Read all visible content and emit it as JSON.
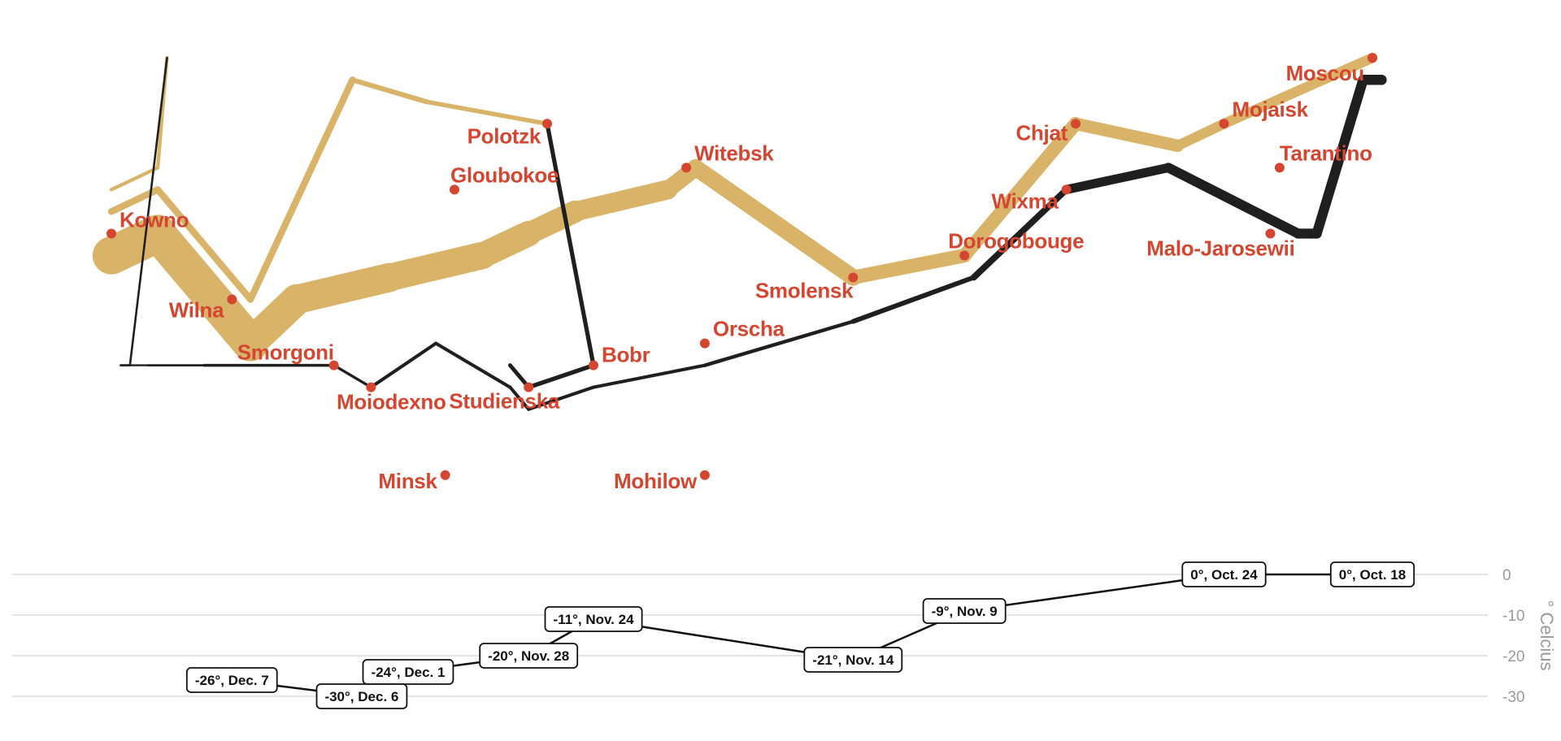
{
  "chart_data": {
    "type": "flow-map",
    "colors": {
      "advance": "#d9b468",
      "retreat": "#1f1f1f",
      "city": "#d44630",
      "grid": "#e3e3e3",
      "tick": "#999999"
    },
    "map": {
      "lon_range": [
        23.5,
        38.1
      ],
      "lat_range": [
        53.74,
        55.96
      ]
    },
    "advance": [
      {
        "lon": 24.0,
        "lat": 54.9,
        "survivors": 422000
      },
      {
        "lon": 24.5,
        "lat": 55.0,
        "survivors": 400000
      },
      {
        "lon": 25.5,
        "lat": 54.5,
        "survivors": 340000
      },
      {
        "lon": 26.0,
        "lat": 54.7,
        "survivors": 320000
      },
      {
        "lon": 27.0,
        "lat": 54.8,
        "survivors": 300000
      },
      {
        "lon": 28.0,
        "lat": 54.9,
        "survivors": 280000
      },
      {
        "lon": 28.5,
        "lat": 55.0,
        "survivors": 240000
      },
      {
        "lon": 29.0,
        "lat": 55.1,
        "survivors": 210000
      },
      {
        "lon": 30.0,
        "lat": 55.2,
        "survivors": 180000
      },
      {
        "lon": 30.3,
        "lat": 55.3,
        "survivors": 175000
      },
      {
        "lon": 32.0,
        "lat": 54.8,
        "survivors": 145000
      },
      {
        "lon": 33.2,
        "lat": 54.9,
        "survivors": 140000
      },
      {
        "lon": 34.4,
        "lat": 55.5,
        "survivors": 127100
      },
      {
        "lon": 35.5,
        "lat": 55.4,
        "survivors": 100000
      },
      {
        "lon": 36.0,
        "lat": 55.5,
        "survivors": 100000
      },
      {
        "lon": 37.6,
        "lat": 55.8,
        "survivors": 100000
      }
    ],
    "advance_branch": [
      {
        "lon": 24.0,
        "lat": 55.1,
        "survivors": 60000
      },
      {
        "lon": 24.5,
        "lat": 55.2,
        "survivors": 60000
      },
      {
        "lon": 25.5,
        "lat": 54.7,
        "survivors": 60000
      },
      {
        "lon": 26.6,
        "lat": 55.7,
        "survivors": 40000
      },
      {
        "lon": 27.4,
        "lat": 55.6,
        "survivors": 33000
      },
      {
        "lon": 28.7,
        "lat": 55.5,
        "survivors": 33000
      }
    ],
    "advance_branch_2": [
      {
        "lon": 24.0,
        "lat": 55.2,
        "survivors": 22000
      },
      {
        "lon": 24.5,
        "lat": 55.3,
        "survivors": 22000
      },
      {
        "lon": 24.6,
        "lat": 55.8,
        "survivors": 6000
      }
    ],
    "retreat": [
      {
        "lon": 37.7,
        "lat": 55.7,
        "survivors": 100000
      },
      {
        "lon": 37.5,
        "lat": 55.7,
        "survivors": 98000
      },
      {
        "lon": 37.0,
        "lat": 55.0,
        "survivors": 97000
      },
      {
        "lon": 36.8,
        "lat": 55.0,
        "survivors": 96000
      },
      {
        "lon": 35.4,
        "lat": 55.3,
        "survivors": 87000
      },
      {
        "lon": 34.3,
        "lat": 55.2,
        "survivors": 55000
      },
      {
        "lon": 33.3,
        "lat": 54.8,
        "survivors": 37000
      },
      {
        "lon": 32.0,
        "lat": 54.6,
        "survivors": 24000
      },
      {
        "lon": 30.4,
        "lat": 54.4,
        "survivors": 20000
      },
      {
        "lon": 29.2,
        "lat": 54.3,
        "survivors": 20000
      },
      {
        "lon": 28.5,
        "lat": 54.2,
        "survivors": 20000
      },
      {
        "lon": 28.3,
        "lat": 54.3,
        "survivors": 20000
      },
      {
        "lon": 27.5,
        "lat": 54.5,
        "survivors": 20000
      },
      {
        "lon": 26.8,
        "lat": 54.3,
        "survivors": 12000
      },
      {
        "lon": 26.4,
        "lat": 54.4,
        "survivors": 14000
      },
      {
        "lon": 25.0,
        "lat": 54.4,
        "survivors": 8000
      },
      {
        "lon": 24.4,
        "lat": 54.4,
        "survivors": 4000
      },
      {
        "lon": 24.2,
        "lat": 54.4,
        "survivors": 4000
      },
      {
        "lon": 24.1,
        "lat": 54.4,
        "survivors": 4000
      }
    ],
    "retreat_branch": [
      {
        "lon": 28.7,
        "lat": 55.5,
        "survivors": 30000
      },
      {
        "lon": 29.2,
        "lat": 54.4,
        "survivors": 30000
      },
      {
        "lon": 28.5,
        "lat": 54.3,
        "survivors": 28000
      },
      {
        "lon": 28.3,
        "lat": 54.4,
        "survivors": 28000
      }
    ],
    "retreat_branch_2": [
      {
        "lon": 24.6,
        "lat": 55.8,
        "survivors": 6000
      },
      {
        "lon": 24.2,
        "lat": 54.4,
        "survivors": 6000
      },
      {
        "lon": 24.1,
        "lat": 54.4,
        "survivors": 6000
      }
    ],
    "cities": [
      {
        "name": "Kowno",
        "lon": 24.0,
        "lat": 55.0,
        "anchor": "start",
        "dx": 10,
        "dy": -8
      },
      {
        "name": "Wilna",
        "lon": 25.3,
        "lat": 54.7,
        "anchor": "end",
        "dx": -10,
        "dy": 22
      },
      {
        "name": "Smorgoni",
        "lon": 26.4,
        "lat": 54.4,
        "anchor": "end",
        "dx": 0,
        "dy": -7
      },
      {
        "name": "Moiodexno",
        "lon": 26.8,
        "lat": 54.3,
        "anchor": "middle",
        "dx": 25,
        "dy": 27
      },
      {
        "name": "Gloubokoe",
        "lon": 27.7,
        "lat": 55.2,
        "anchor": "start",
        "dx": -5,
        "dy": -9
      },
      {
        "name": "Minsk",
        "lon": 27.6,
        "lat": 53.9,
        "anchor": "end",
        "dx": -10,
        "dy": 16
      },
      {
        "name": "Studienska",
        "lon": 28.5,
        "lat": 54.3,
        "anchor": "middle",
        "dx": -30,
        "dy": 26
      },
      {
        "name": "Polotzk",
        "lon": 28.7,
        "lat": 55.5,
        "anchor": "end",
        "dx": -8,
        "dy": 24
      },
      {
        "name": "Bobr",
        "lon": 29.2,
        "lat": 54.4,
        "anchor": "start",
        "dx": 10,
        "dy": -4
      },
      {
        "name": "Witebsk",
        "lon": 30.2,
        "lat": 55.3,
        "anchor": "start",
        "dx": 10,
        "dy": -9
      },
      {
        "name": "Orscha",
        "lon": 30.4,
        "lat": 54.5,
        "anchor": "start",
        "dx": 10,
        "dy": -9
      },
      {
        "name": "Mohilow",
        "lon": 30.4,
        "lat": 53.9,
        "anchor": "end",
        "dx": -10,
        "dy": 16
      },
      {
        "name": "Smolensk",
        "lon": 32.0,
        "lat": 54.8,
        "anchor": "end",
        "dx": 0,
        "dy": 25
      },
      {
        "name": "Dorogobouge",
        "lon": 33.2,
        "lat": 54.9,
        "anchor": "start",
        "dx": -20,
        "dy": -9
      },
      {
        "name": "Wixma",
        "lon": 34.3,
        "lat": 55.2,
        "anchor": "end",
        "dx": -10,
        "dy": 23
      },
      {
        "name": "Chjat",
        "lon": 34.4,
        "lat": 55.5,
        "anchor": "end",
        "dx": -10,
        "dy": 20
      },
      {
        "name": "Mojaisk",
        "lon": 36.0,
        "lat": 55.5,
        "anchor": "start",
        "dx": 10,
        "dy": -9
      },
      {
        "name": "Moscou",
        "lon": 37.6,
        "lat": 55.8,
        "anchor": "end",
        "dx": -10,
        "dy": 28
      },
      {
        "name": "Tarantino",
        "lon": 36.6,
        "lat": 55.3,
        "anchor": "start",
        "dx": 0,
        "dy": -9
      },
      {
        "name": "Malo-Jarosewii",
        "lon": 36.5,
        "lat": 55.0,
        "anchor": "end",
        "dx": 30,
        "dy": 27
      }
    ],
    "temperature": {
      "axis_label": "° Celcius",
      "yticks": [
        0,
        -10,
        -20,
        -30
      ],
      "ylim": [
        -30,
        0
      ],
      "points": [
        {
          "lon": 37.6,
          "temp": 0,
          "label": "0°, Oct. 18"
        },
        {
          "lon": 36.0,
          "temp": 0,
          "label": "0°, Oct. 24"
        },
        {
          "lon": 33.2,
          "temp": -9,
          "label": "-9°, Nov. 9"
        },
        {
          "lon": 32.0,
          "temp": -21,
          "label": "-21°, Nov. 14"
        },
        {
          "lon": 29.2,
          "temp": -11,
          "label": "-11°, Nov. 24"
        },
        {
          "lon": 28.5,
          "temp": -20,
          "label": "-20°, Nov. 28"
        },
        {
          "lon": 27.2,
          "temp": -24,
          "label": "-24°, Dec. 1"
        },
        {
          "lon": 26.7,
          "temp": -30,
          "label": "-30°, Dec. 6"
        },
        {
          "lon": 25.3,
          "temp": -26,
          "label": "-26°, Dec. 7"
        }
      ]
    }
  }
}
